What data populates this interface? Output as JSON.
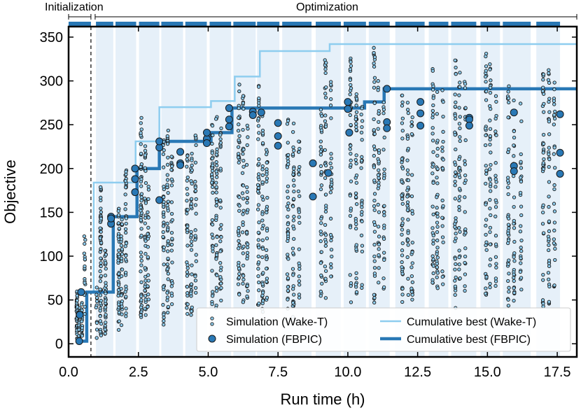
{
  "chart_data": {
    "type": "scatter",
    "title": "",
    "xlabel": "Run time (h)",
    "ylabel": "Objective",
    "xlim": [
      0,
      18.2
    ],
    "ylim": [
      -15,
      362
    ],
    "x_ticks": [
      0.0,
      2.5,
      5.0,
      7.5,
      10.0,
      12.5,
      15.0,
      17.5
    ],
    "x_tick_labels": [
      "0.0",
      "2.5",
      "5.0",
      "7.5",
      "10.0",
      "12.5",
      "15.0",
      "17.5"
    ],
    "y_ticks": [
      0,
      50,
      100,
      150,
      200,
      250,
      300,
      350
    ],
    "y_tick_labels": [
      "0",
      "50",
      "100",
      "150",
      "200",
      "250",
      "300",
      "350"
    ],
    "phases": {
      "initialization_label": "Initialization",
      "optimization_label": "Optimization",
      "boundary_x": 0.8
    },
    "batch_intervals": [
      [
        0.0,
        0.8
      ],
      [
        0.98,
        1.6
      ],
      [
        1.68,
        2.42
      ],
      [
        2.52,
        3.25
      ],
      [
        3.32,
        4.1
      ],
      [
        4.18,
        4.95
      ],
      [
        5.05,
        5.82
      ],
      [
        5.9,
        6.7
      ],
      [
        6.75,
        7.55
      ],
      [
        7.65,
        8.7
      ],
      [
        8.85,
        9.75
      ],
      [
        9.85,
        10.65
      ],
      [
        10.75,
        11.5
      ],
      [
        11.7,
        12.75
      ],
      [
        12.9,
        13.6
      ],
      [
        13.7,
        14.6
      ],
      [
        14.75,
        15.45
      ],
      [
        15.55,
        16.55
      ],
      [
        16.75,
        17.6
      ]
    ],
    "colors": {
      "wake_t": "#8ecdef",
      "fbpic": "#2978b5",
      "band": "#e6f0f9",
      "marker_edge": "#1a1a1a",
      "phase_bar": "#2978b5"
    },
    "legend": {
      "position": "lower-right",
      "entries": [
        {
          "label": "Simulation (Wake-T)",
          "kind": "small-marker"
        },
        {
          "label": "Simulation (FBPIC)",
          "kind": "large-marker"
        },
        {
          "label": "Cumulative best (Wake-T)",
          "kind": "thin-line"
        },
        {
          "label": "Cumulative best (FBPIC)",
          "kind": "thick-line"
        }
      ]
    },
    "series": [
      {
        "name": "Cumulative best (Wake-T)",
        "type": "step",
        "x": [
          0.65,
          0.9,
          1.6,
          2.4,
          3.25,
          5.1,
          5.95,
          6.85,
          9.35,
          18.2
        ],
        "y": [
          59,
          184,
          184,
          231,
          270,
          277,
          305,
          334,
          342,
          342
        ]
      },
      {
        "name": "Cumulative best (FBPIC)",
        "type": "step",
        "x": [
          0.45,
          0.65,
          1.6,
          2.45,
          3.25,
          5.1,
          5.85,
          9.8,
          10.6,
          11.3,
          18.2
        ],
        "y": [
          3,
          59,
          145,
          200,
          231,
          241,
          269,
          269,
          276,
          291,
          291
        ]
      },
      {
        "name": "Simulation (FBPIC)",
        "type": "scatter",
        "points": [
          [
            0.38,
            3
          ],
          [
            0.4,
            33
          ],
          [
            0.45,
            59
          ],
          [
            1.52,
            137
          ],
          [
            1.52,
            145
          ],
          [
            1.52,
            143
          ],
          [
            2.38,
            173
          ],
          [
            2.38,
            188
          ],
          [
            2.38,
            200
          ],
          [
            3.25,
            164
          ],
          [
            3.25,
            224
          ],
          [
            3.25,
            231
          ],
          [
            4.0,
            219
          ],
          [
            4.0,
            206
          ],
          [
            4.0,
            204
          ],
          [
            4.95,
            234
          ],
          [
            4.95,
            241
          ],
          [
            4.95,
            229
          ],
          [
            5.75,
            248
          ],
          [
            5.75,
            256
          ],
          [
            5.75,
            269
          ],
          [
            6.6,
            265
          ],
          [
            6.6,
            261
          ],
          [
            6.9,
            264
          ],
          [
            7.5,
            252
          ],
          [
            7.5,
            237
          ],
          [
            7.5,
            226
          ],
          [
            8.75,
            206
          ],
          [
            8.75,
            168
          ],
          [
            9.3,
            195
          ],
          [
            10.0,
            276
          ],
          [
            10.0,
            268
          ],
          [
            10.05,
            241
          ],
          [
            11.4,
            291
          ],
          [
            11.4,
            253
          ],
          [
            11.4,
            246
          ],
          [
            12.6,
            276
          ],
          [
            12.6,
            263
          ],
          [
            12.6,
            249
          ],
          [
            14.35,
            258
          ],
          [
            14.35,
            256
          ],
          [
            14.35,
            249
          ],
          [
            15.95,
            264
          ],
          [
            15.95,
            203
          ],
          [
            15.95,
            197
          ],
          [
            17.6,
            262
          ],
          [
            17.6,
            218
          ],
          [
            17.6,
            194
          ]
        ]
      },
      {
        "name": "Simulation (Wake-T)",
        "type": "scatter",
        "columns": [
          [
            0.3,
            5,
            60,
            50
          ],
          [
            0.38,
            5,
            50,
            22
          ],
          [
            0.47,
            5,
            48,
            20
          ],
          [
            0.58,
            30,
            125,
            18
          ],
          [
            1.0,
            5,
            70,
            12
          ],
          [
            1.15,
            5,
            180,
            60
          ],
          [
            1.32,
            10,
            110,
            40
          ],
          [
            1.8,
            15,
            160,
            45
          ],
          [
            1.9,
            20,
            150,
            28
          ],
          [
            2.05,
            15,
            200,
            40
          ],
          [
            2.6,
            30,
            265,
            60
          ],
          [
            2.75,
            25,
            230,
            40
          ],
          [
            2.85,
            40,
            180,
            22
          ],
          [
            3.4,
            20,
            240,
            40
          ],
          [
            3.55,
            35,
            250,
            45
          ],
          [
            3.7,
            40,
            220,
            30
          ],
          [
            4.25,
            30,
            225,
            35
          ],
          [
            4.4,
            30,
            230,
            40
          ],
          [
            4.55,
            40,
            240,
            25
          ],
          [
            5.15,
            30,
            250,
            40
          ],
          [
            5.3,
            40,
            260,
            40
          ],
          [
            5.45,
            40,
            250,
            35
          ],
          [
            6.1,
            40,
            305,
            45
          ],
          [
            6.25,
            40,
            290,
            35
          ],
          [
            6.4,
            50,
            260,
            28
          ],
          [
            6.8,
            40,
            300,
            45
          ],
          [
            6.95,
            30,
            265,
            40
          ],
          [
            7.1,
            50,
            240,
            30
          ],
          [
            7.85,
            40,
            260,
            40
          ],
          [
            8.05,
            30,
            255,
            40
          ],
          [
            8.25,
            50,
            240,
            25
          ],
          [
            9.05,
            40,
            270,
            35
          ],
          [
            9.2,
            50,
            330,
            40
          ],
          [
            9.4,
            60,
            300,
            30
          ],
          [
            10.1,
            40,
            330,
            40
          ],
          [
            10.3,
            50,
            290,
            40
          ],
          [
            10.5,
            60,
            280,
            25
          ],
          [
            10.95,
            45,
            340,
            45
          ],
          [
            11.1,
            50,
            300,
            35
          ],
          [
            11.3,
            60,
            280,
            25
          ],
          [
            11.95,
            40,
            290,
            45
          ],
          [
            12.15,
            50,
            280,
            35
          ],
          [
            12.3,
            50,
            270,
            25
          ],
          [
            13.05,
            45,
            320,
            40
          ],
          [
            13.2,
            50,
            300,
            35
          ],
          [
            13.4,
            60,
            290,
            25
          ],
          [
            13.85,
            40,
            335,
            45
          ],
          [
            14.0,
            50,
            310,
            35
          ],
          [
            14.2,
            60,
            300,
            28
          ],
          [
            14.95,
            40,
            340,
            40
          ],
          [
            15.1,
            45,
            320,
            35
          ],
          [
            15.3,
            60,
            300,
            25
          ],
          [
            15.75,
            40,
            300,
            40
          ],
          [
            15.95,
            45,
            290,
            35
          ],
          [
            16.2,
            60,
            280,
            28
          ],
          [
            17.0,
            40,
            310,
            40
          ],
          [
            17.2,
            45,
            320,
            40
          ],
          [
            17.4,
            60,
            300,
            28
          ]
        ]
      }
    ]
  }
}
